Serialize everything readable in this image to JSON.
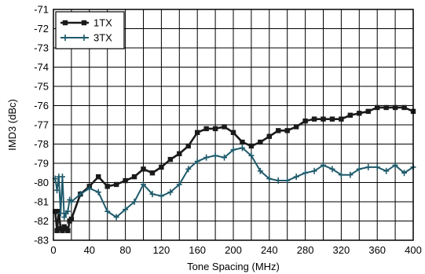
{
  "chart_data": {
    "type": "line",
    "xlabel": "Tone Spacing (MHz)",
    "ylabel": "IMD3 (dBc)",
    "xlim": [
      0,
      400
    ],
    "ylim": [
      -83,
      -71
    ],
    "xticks": [
      0,
      40,
      80,
      120,
      160,
      200,
      240,
      280,
      320,
      360,
      400
    ],
    "yticks": [
      -83,
      -82,
      -81,
      -80,
      -79,
      -78,
      -77,
      -76,
      -75,
      -74,
      -73,
      -72,
      -71
    ],
    "grid": true,
    "legend_position": "top-left",
    "series": [
      {
        "name": "1TX",
        "color": "#1a1a1a",
        "marker": "square",
        "x": [
          2,
          4,
          6,
          8,
          10,
          12,
          14,
          16,
          18,
          20,
          30,
          40,
          50,
          60,
          70,
          80,
          90,
          100,
          110,
          120,
          130,
          140,
          150,
          160,
          170,
          180,
          190,
          200,
          210,
          220,
          230,
          240,
          250,
          260,
          270,
          280,
          290,
          300,
          310,
          320,
          330,
          340,
          350,
          360,
          370,
          380,
          390,
          400
        ],
        "y": [
          -81.5,
          -82.5,
          -81.5,
          -82.4,
          -82.5,
          -82.3,
          -82.4,
          -82.5,
          -82.0,
          -81.9,
          -80.6,
          -80.2,
          -79.7,
          -80.2,
          -80.1,
          -79.9,
          -79.7,
          -79.3,
          -79.5,
          -79.2,
          -78.8,
          -78.5,
          -78.1,
          -77.4,
          -77.2,
          -77.2,
          -77.1,
          -77.4,
          -77.9,
          -78.1,
          -77.9,
          -77.6,
          -77.3,
          -77.3,
          -77.1,
          -76.8,
          -76.7,
          -76.7,
          -76.7,
          -76.7,
          -76.5,
          -76.4,
          -76.3,
          -76.1,
          -76.1,
          -76.1,
          -76.1,
          -76.3
        ]
      },
      {
        "name": "3TX",
        "color": "#1f5a6b",
        "marker": "cross",
        "x": [
          2,
          4,
          6,
          8,
          10,
          12,
          14,
          16,
          18,
          20,
          30,
          40,
          50,
          60,
          70,
          80,
          90,
          100,
          110,
          120,
          130,
          140,
          150,
          160,
          170,
          180,
          190,
          200,
          210,
          220,
          230,
          240,
          250,
          260,
          270,
          280,
          290,
          300,
          310,
          320,
          330,
          340,
          350,
          360,
          370,
          380,
          390,
          400
        ],
        "y": [
          -79.8,
          -80.4,
          -79.7,
          -81.6,
          -79.7,
          -81.8,
          -81.6,
          -81.5,
          -80.9,
          -81.0,
          -80.6,
          -80.3,
          -80.5,
          -81.5,
          -81.8,
          -81.4,
          -81.0,
          -80.1,
          -80.6,
          -80.7,
          -80.5,
          -80.1,
          -79.3,
          -78.9,
          -78.7,
          -78.6,
          -78.7,
          -78.3,
          -78.2,
          -78.6,
          -79.4,
          -79.8,
          -79.9,
          -79.9,
          -79.7,
          -79.5,
          -79.4,
          -79.1,
          -79.3,
          -79.6,
          -79.6,
          -79.3,
          -79.2,
          -79.2,
          -79.4,
          -79.1,
          -79.5,
          -79.2
        ]
      }
    ]
  }
}
